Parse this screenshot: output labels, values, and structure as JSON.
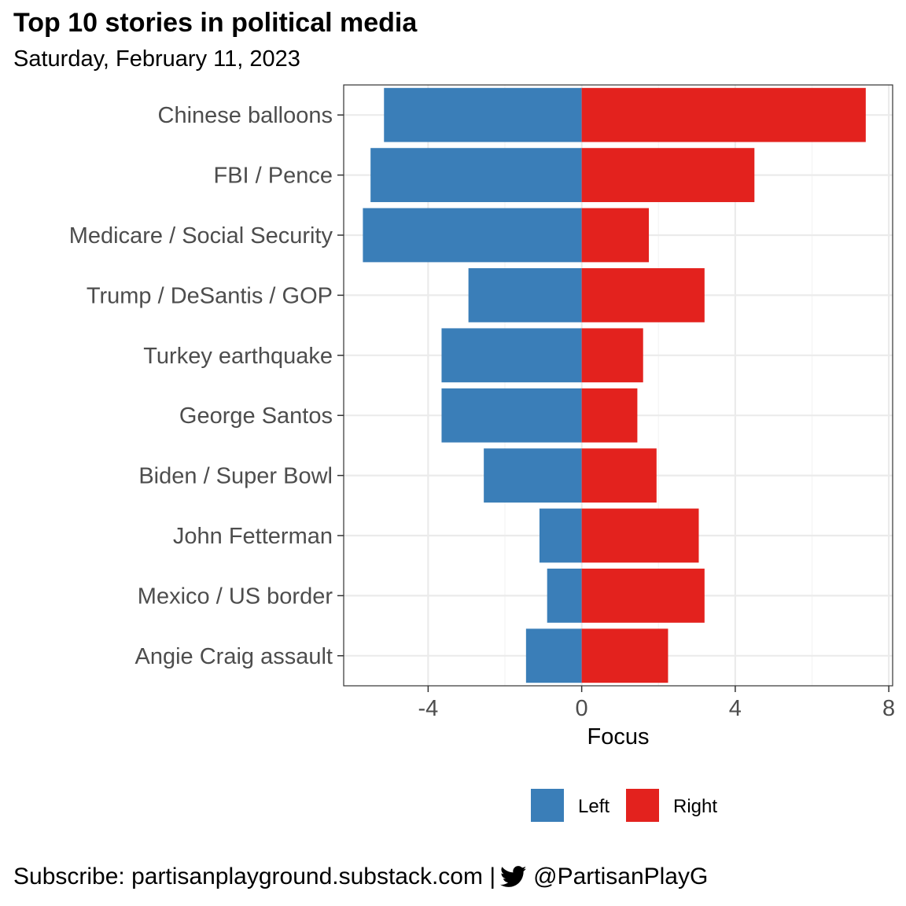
{
  "chart_data": {
    "type": "bar",
    "orientation": "horizontal-diverging",
    "title": "Top 10 stories in political media",
    "subtitle": "Saturday, February 11, 2023",
    "xlabel": "Focus",
    "ylabel": "",
    "xlim": [
      -6.2,
      8.1
    ],
    "xticks": [
      -4,
      0,
      4,
      8
    ],
    "xtick_labels": [
      "-4",
      "0",
      "4",
      "8"
    ],
    "grid": true,
    "legend_position": "bottom",
    "categories": [
      "Chinese balloons",
      "FBI / Pence",
      "Medicare / Social Security",
      "Trump / DeSantis / GOP",
      "Turkey earthquake",
      "George Santos",
      "Biden / Super Bowl",
      "John Fetterman",
      "Mexico / US border",
      "Angie Craig assault"
    ],
    "series": [
      {
        "name": "Left",
        "color": "#3a7eb8",
        "values": [
          -5.15,
          -5.5,
          -5.7,
          -2.95,
          -3.65,
          -3.65,
          -2.55,
          -1.1,
          -0.9,
          -1.45
        ]
      },
      {
        "name": "Right",
        "color": "#e3221e",
        "values": [
          7.4,
          4.5,
          1.75,
          3.2,
          1.6,
          1.45,
          1.95,
          3.05,
          3.2,
          2.25
        ]
      }
    ]
  },
  "footer": {
    "subscribe_text": "Subscribe: partisanplayground.substack.com",
    "separator": "|",
    "twitter_handle": "@PartisanPlayG",
    "twitter_icon": "twitter-bird-icon"
  }
}
